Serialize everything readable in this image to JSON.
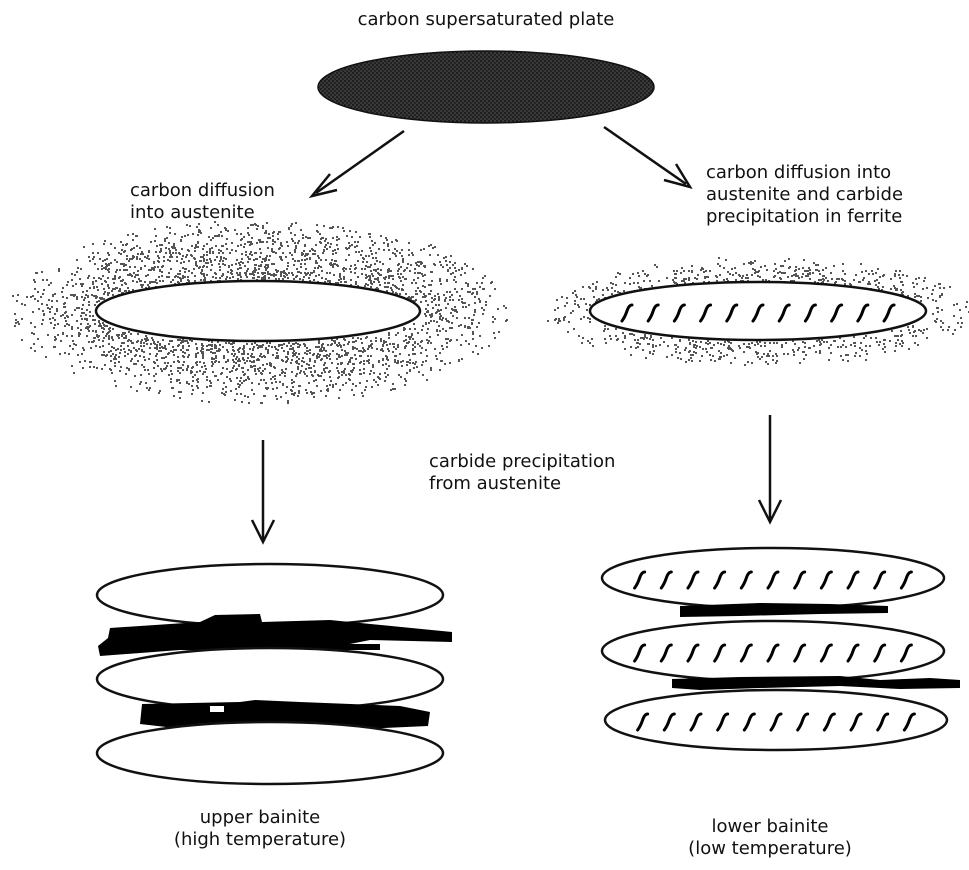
{
  "labels": {
    "top": "carbon supersaturated plate",
    "left_step": [
      "carbon diffusion",
      "into austenite"
    ],
    "right_step": [
      "carbon diffusion into",
      "austenite and carbide",
      "precipitation in ferrite"
    ],
    "middle_step": [
      "carbide precipitation",
      "from austenite"
    ],
    "upper_bainite": [
      "upper bainite",
      "(high temperature)"
    ],
    "lower_bainite": [
      "lower bainite",
      "(low temperature)"
    ]
  },
  "colors": {
    "ink": "#111111",
    "plate_fill": "#2e2e2e",
    "ferrite_fill": "#ffffff",
    "carbide": "#000000",
    "stipple": "#555555"
  }
}
